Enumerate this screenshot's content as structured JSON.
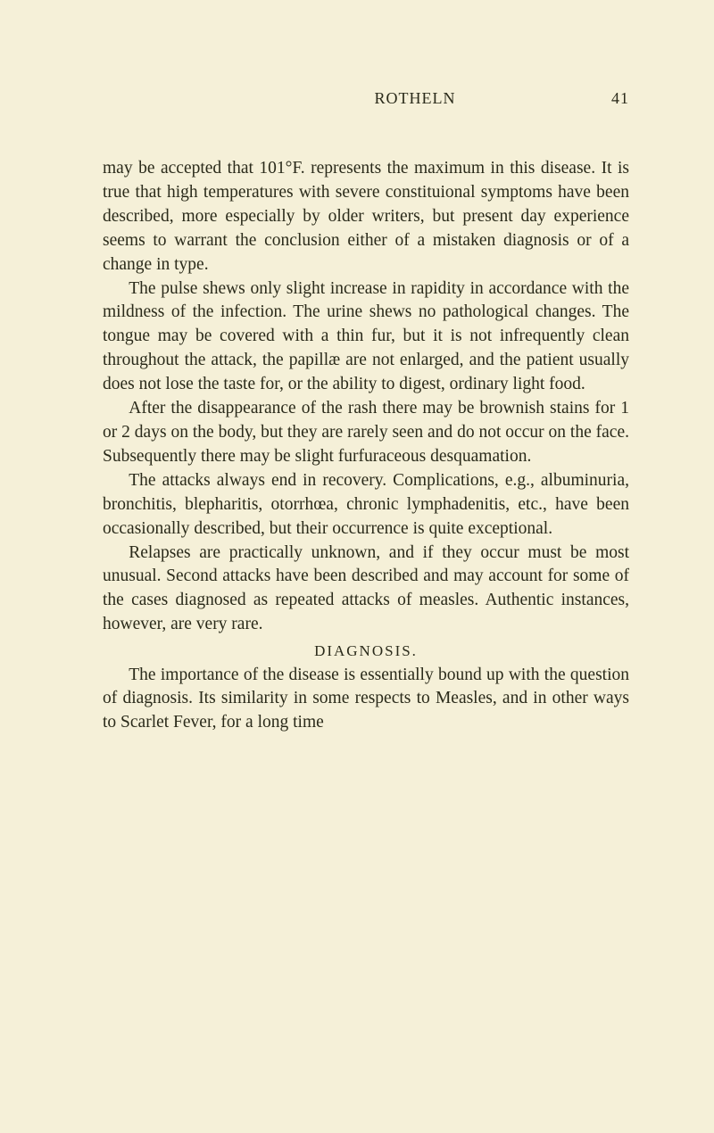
{
  "header": {
    "title": "ROTHELN",
    "page_number": "41"
  },
  "paragraphs": {
    "p1": "may be accepted that 101°F. represents the maximum in this disease. It is true that high temperatures with severe constituional symptoms have been described, more especially by older writers, but present day experience seems to warrant the conclusion either of a mistaken diagnosis or of a change in type.",
    "p2": "The pulse shews only slight increase in rapidity in accordance with the mildness of the infection. The urine shews no pathological changes. The tongue may be covered with a thin fur, but it is not infrequently clean throughout the attack, the papillæ are not enlarged, and the patient usually does not lose the taste for, or the ability to digest, ordinary light food.",
    "p3": "After the disappearance of the rash there may be brownish stains for 1 or 2 days on the body, but they are rarely seen and do not occur on the face. Subsequently there may be slight furfuraceous desquamation.",
    "p4": "The attacks always end in recovery. Complications, e.g., albuminuria, bronchitis, blepharitis, otorrhœa, chronic lymphadenitis, etc., have been occasionally described, but their occurrence is quite exceptional.",
    "p5": "Relapses are practically unknown, and if they occur must be most unusual. Second attacks have been described and may account for some of the cases diagnosed as repeated attacks of measles. Authentic instances, however, are very rare.",
    "section_heading": "DIAGNOSIS.",
    "p6": "The importance of the disease is essentially bound up with the question of diagnosis. Its similarity in some respects to Measles, and in other ways to Scarlet Fever, for a long time"
  }
}
